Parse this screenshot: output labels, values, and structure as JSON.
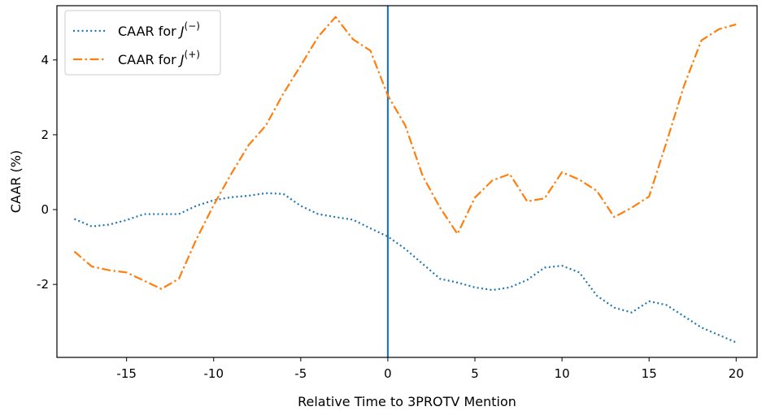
{
  "chart_data": {
    "type": "line",
    "xlabel": "Relative Time to 3PROTV Mention",
    "ylabel": "CAAR (%)",
    "xlim": [
      -19.0,
      21.2
    ],
    "ylim": [
      -3.95,
      5.45
    ],
    "xticks": [
      -15,
      -10,
      -5,
      0,
      5,
      10,
      15,
      20
    ],
    "xtick_labels": [
      "-15",
      "-10",
      "-5",
      "0",
      "5",
      "10",
      "15",
      "20"
    ],
    "yticks": [
      -2,
      0,
      2,
      4
    ],
    "ytick_labels": [
      "-2",
      "0",
      "2",
      "4"
    ],
    "grid": false,
    "legend_position": "top-left",
    "vertical_line_x": 0,
    "x": [
      -18,
      -17,
      -16,
      -15,
      -14,
      -13,
      -12,
      -11,
      -10,
      -9,
      -8,
      -7,
      -6,
      -5,
      -4,
      -3,
      -2,
      -1,
      0,
      1,
      2,
      3,
      4,
      5,
      6,
      7,
      8,
      9,
      10,
      11,
      12,
      13,
      14,
      15,
      16,
      17,
      18,
      19,
      20
    ],
    "series": [
      {
        "name": "CAAR for J⁽⁻⁾",
        "legend_base": "CAAR for ",
        "legend_var": "J",
        "legend_sup": "(−)",
        "color": "#1f77b4",
        "linestyle": "dotted",
        "values": [
          -0.25,
          -0.45,
          -0.4,
          -0.28,
          -0.12,
          -0.12,
          -0.12,
          0.1,
          0.25,
          0.33,
          0.37,
          0.44,
          0.42,
          0.1,
          -0.12,
          -0.2,
          -0.27,
          -0.5,
          -0.72,
          -1.05,
          -1.45,
          -1.85,
          -1.95,
          -2.08,
          -2.15,
          -2.08,
          -1.88,
          -1.55,
          -1.5,
          -1.68,
          -2.3,
          -2.62,
          -2.75,
          -2.45,
          -2.55,
          -2.85,
          -3.15,
          -3.35,
          -3.55
        ]
      },
      {
        "name": "CAAR for J⁽⁺⁾",
        "legend_base": "CAAR for ",
        "legend_var": "J",
        "legend_sup": "(+)",
        "color": "#ff7f0e",
        "linestyle": "dashdot",
        "values": [
          -1.12,
          -1.52,
          -1.62,
          -1.68,
          -1.9,
          -2.12,
          -1.85,
          -0.8,
          0.12,
          0.95,
          1.72,
          2.25,
          3.1,
          3.85,
          4.62,
          5.15,
          4.55,
          4.25,
          3.05,
          2.25,
          0.9,
          0.05,
          -0.65,
          0.32,
          0.78,
          0.95,
          0.22,
          0.3,
          1.0,
          0.8,
          0.5,
          -0.2,
          0.05,
          0.35,
          1.8,
          3.3,
          4.52,
          4.82,
          4.95
        ]
      }
    ]
  }
}
